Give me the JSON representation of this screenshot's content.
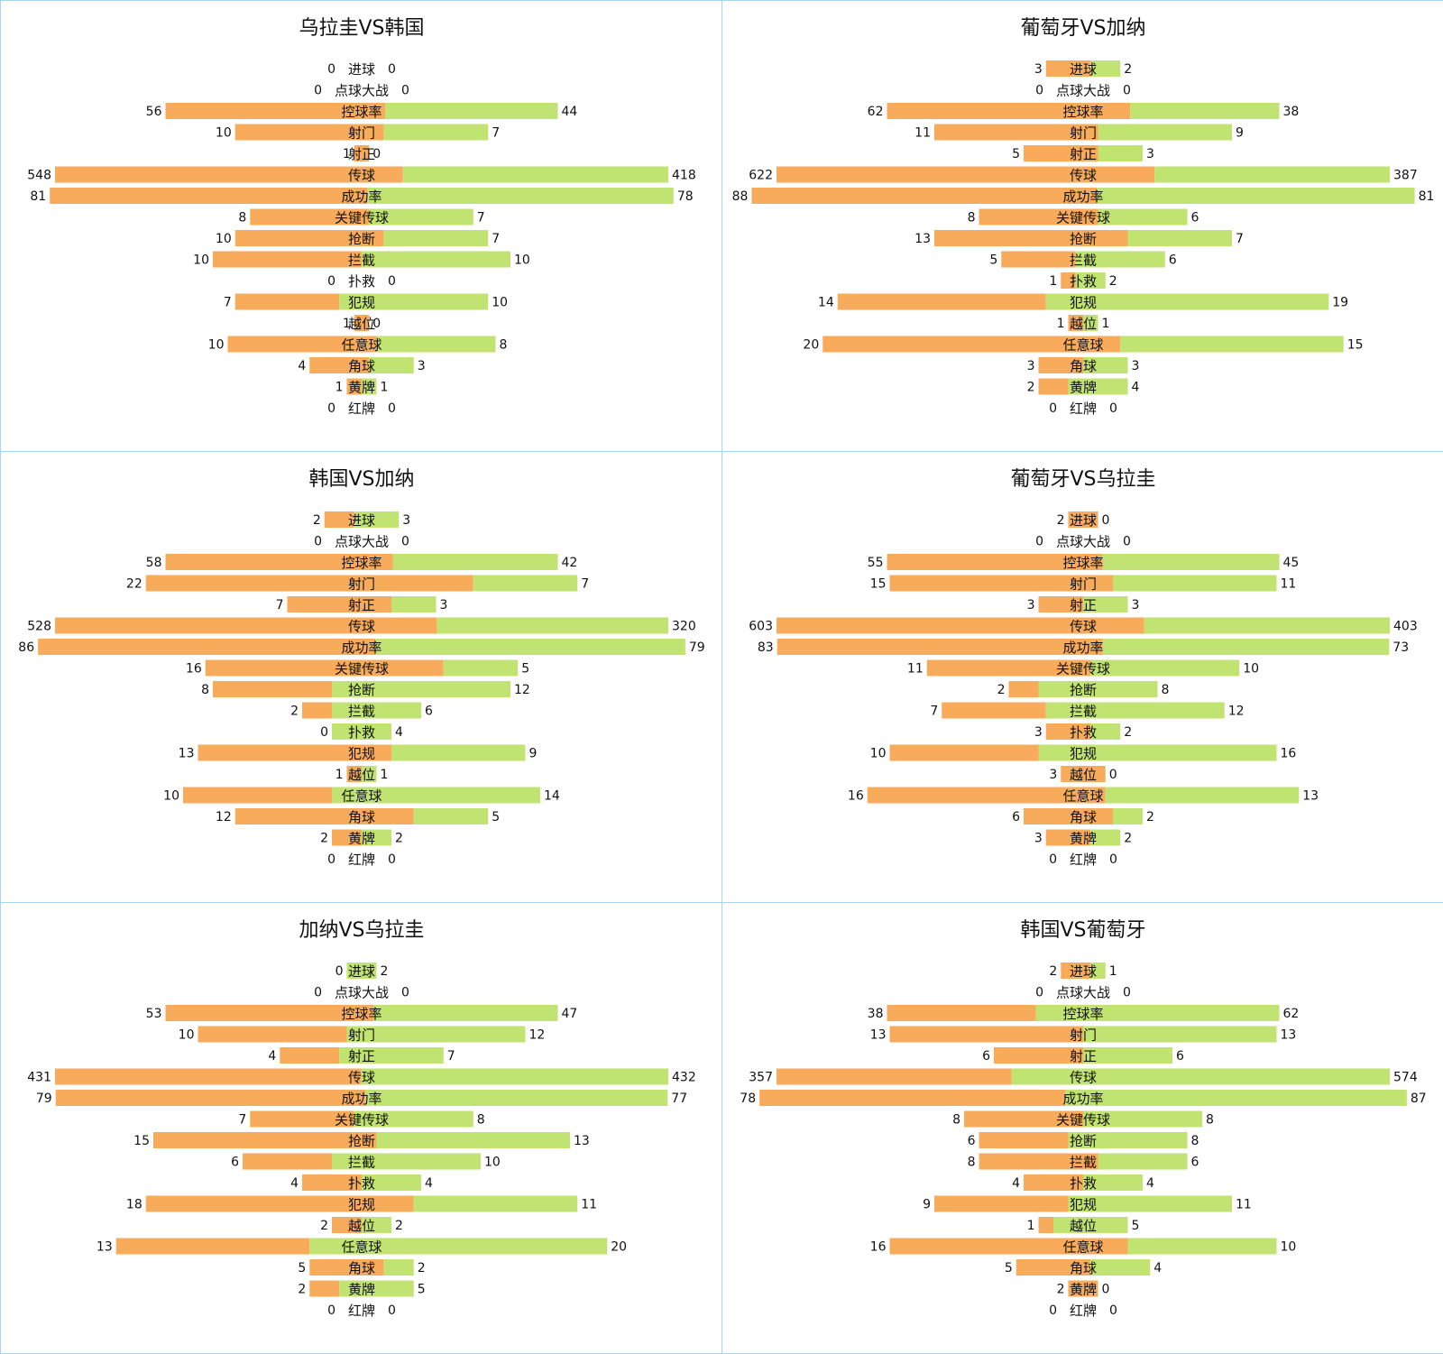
{
  "colors": {
    "left": "#f9ab5c",
    "right": "#c1e371",
    "border": "#a9d3ee"
  },
  "chart_data": [
    {
      "type": "bar",
      "title": "乌拉圭VS韩国",
      "categories": [
        "进球",
        "点球大战",
        "控球率",
        "射门",
        "射正",
        "传球",
        "成功率",
        "关键传球",
        "抢断",
        "拦截",
        "扑救",
        "犯规",
        "越位",
        "任意球",
        "角球",
        "黄牌",
        "红牌"
      ],
      "series": [
        {
          "values": [
            0,
            0,
            56,
            10,
            1,
            548,
            81,
            8,
            10,
            10,
            0,
            7,
            1,
            10,
            4,
            1,
            0
          ]
        },
        {
          "values": [
            0,
            0,
            44,
            7,
            0,
            418,
            78,
            7,
            7,
            10,
            0,
            10,
            0,
            8,
            3,
            1,
            0
          ]
        }
      ]
    },
    {
      "type": "bar",
      "title": "葡萄牙VS加纳",
      "categories": [
        "进球",
        "点球大战",
        "控球率",
        "射门",
        "射正",
        "传球",
        "成功率",
        "关键传球",
        "抢断",
        "拦截",
        "扑救",
        "犯规",
        "越位",
        "任意球",
        "角球",
        "黄牌",
        "红牌"
      ],
      "series": [
        {
          "values": [
            3,
            0,
            62,
            11,
            5,
            622,
            88,
            8,
            13,
            5,
            1,
            14,
            1,
            20,
            3,
            2,
            0
          ]
        },
        {
          "values": [
            2,
            0,
            38,
            9,
            3,
            387,
            81,
            6,
            7,
            6,
            2,
            19,
            1,
            15,
            3,
            4,
            0
          ]
        }
      ]
    },
    {
      "type": "bar",
      "title": "韩国VS加纳",
      "categories": [
        "进球",
        "点球大战",
        "控球率",
        "射门",
        "射正",
        "传球",
        "成功率",
        "关键传球",
        "抢断",
        "拦截",
        "扑救",
        "犯规",
        "越位",
        "任意球",
        "角球",
        "黄牌",
        "红牌"
      ],
      "series": [
        {
          "values": [
            2,
            0,
            58,
            22,
            7,
            528,
            86,
            16,
            8,
            2,
            0,
            13,
            1,
            10,
            12,
            2,
            0
          ]
        },
        {
          "values": [
            3,
            0,
            42,
            7,
            3,
            320,
            79,
            5,
            12,
            6,
            4,
            9,
            1,
            14,
            5,
            2,
            0
          ]
        }
      ]
    },
    {
      "type": "bar",
      "title": "葡萄牙VS乌拉圭",
      "categories": [
        "进球",
        "点球大战",
        "控球率",
        "射门",
        "射正",
        "传球",
        "成功率",
        "关键传球",
        "抢断",
        "拦截",
        "扑救",
        "犯规",
        "越位",
        "任意球",
        "角球",
        "黄牌",
        "红牌"
      ],
      "series": [
        {
          "values": [
            2,
            0,
            55,
            15,
            3,
            603,
            83,
            11,
            2,
            7,
            3,
            10,
            3,
            16,
            6,
            3,
            0
          ]
        },
        {
          "values": [
            0,
            0,
            45,
            11,
            3,
            403,
            73,
            10,
            8,
            12,
            2,
            16,
            0,
            13,
            2,
            2,
            0
          ]
        }
      ]
    },
    {
      "type": "bar",
      "title": "加纳VS乌拉圭",
      "categories": [
        "进球",
        "点球大战",
        "控球率",
        "射门",
        "射正",
        "传球",
        "成功率",
        "关键传球",
        "抢断",
        "拦截",
        "扑救",
        "犯规",
        "越位",
        "任意球",
        "角球",
        "黄牌",
        "红牌"
      ],
      "series": [
        {
          "values": [
            0,
            0,
            53,
            10,
            4,
            431,
            79,
            7,
            15,
            6,
            4,
            18,
            2,
            13,
            5,
            2,
            0
          ]
        },
        {
          "values": [
            2,
            0,
            47,
            12,
            7,
            432,
            77,
            8,
            13,
            10,
            4,
            11,
            2,
            20,
            2,
            5,
            0
          ]
        }
      ]
    },
    {
      "type": "bar",
      "title": "韩国VS葡萄牙",
      "categories": [
        "进球",
        "点球大战",
        "控球率",
        "射门",
        "射正",
        "传球",
        "成功率",
        "关键传球",
        "抢断",
        "拦截",
        "扑救",
        "犯规",
        "越位",
        "任意球",
        "角球",
        "黄牌",
        "红牌"
      ],
      "series": [
        {
          "values": [
            2,
            0,
            38,
            13,
            6,
            357,
            78,
            8,
            6,
            8,
            4,
            9,
            1,
            16,
            5,
            2,
            0
          ]
        },
        {
          "values": [
            1,
            0,
            62,
            13,
            6,
            574,
            87,
            8,
            8,
            6,
            4,
            11,
            5,
            10,
            4,
            0,
            0
          ]
        }
      ]
    }
  ]
}
